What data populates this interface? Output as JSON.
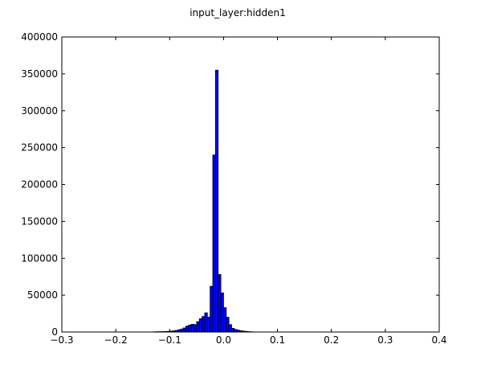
{
  "chart_data": {
    "type": "bar",
    "title": "input_layer:hidden1",
    "xlabel": "",
    "ylabel": "",
    "xlim": [
      -0.3,
      0.4
    ],
    "ylim": [
      0,
      400000
    ],
    "xticks": [
      "−0.3",
      "−0.2",
      "−0.1",
      "0.0",
      "0.1",
      "0.2",
      "0.3",
      "0.4"
    ],
    "xtick_values": [
      -0.3,
      -0.2,
      -0.1,
      0.0,
      0.1,
      0.2,
      0.3,
      0.4
    ],
    "yticks": [
      "0",
      "50000",
      "100000",
      "150000",
      "200000",
      "250000",
      "300000",
      "350000",
      "400000"
    ],
    "ytick_values": [
      0,
      50000,
      100000,
      150000,
      200000,
      250000,
      300000,
      350000,
      400000
    ],
    "grid": false,
    "bar_color": "#0000ff",
    "edge_color": "#000000",
    "bin_width": 0.005,
    "bins": [
      {
        "x": -0.13,
        "value": 300
      },
      {
        "x": -0.125,
        "value": 400
      },
      {
        "x": -0.12,
        "value": 500
      },
      {
        "x": -0.115,
        "value": 600
      },
      {
        "x": -0.11,
        "value": 700
      },
      {
        "x": -0.105,
        "value": 900
      },
      {
        "x": -0.1,
        "value": 1200
      },
      {
        "x": -0.095,
        "value": 1600
      },
      {
        "x": -0.09,
        "value": 2200
      },
      {
        "x": -0.085,
        "value": 3000
      },
      {
        "x": -0.08,
        "value": 4000
      },
      {
        "x": -0.075,
        "value": 5500
      },
      {
        "x": -0.07,
        "value": 8000
      },
      {
        "x": -0.065,
        "value": 9500
      },
      {
        "x": -0.06,
        "value": 10500
      },
      {
        "x": -0.055,
        "value": 10000
      },
      {
        "x": -0.05,
        "value": 14000
      },
      {
        "x": -0.045,
        "value": 18000
      },
      {
        "x": -0.04,
        "value": 21000
      },
      {
        "x": -0.035,
        "value": 26000
      },
      {
        "x": -0.03,
        "value": 20000
      },
      {
        "x": -0.025,
        "value": 62000
      },
      {
        "x": -0.02,
        "value": 240000
      },
      {
        "x": -0.015,
        "value": 355000
      },
      {
        "x": -0.01,
        "value": 78000
      },
      {
        "x": -0.005,
        "value": 53000
      },
      {
        "x": 0.0,
        "value": 33000
      },
      {
        "x": 0.005,
        "value": 20000
      },
      {
        "x": 0.01,
        "value": 10000
      },
      {
        "x": 0.015,
        "value": 5000
      },
      {
        "x": 0.02,
        "value": 3500
      },
      {
        "x": 0.025,
        "value": 2500
      },
      {
        "x": 0.03,
        "value": 1800
      },
      {
        "x": 0.035,
        "value": 1200
      },
      {
        "x": 0.04,
        "value": 800
      },
      {
        "x": 0.045,
        "value": 500
      },
      {
        "x": 0.05,
        "value": 300
      }
    ]
  }
}
